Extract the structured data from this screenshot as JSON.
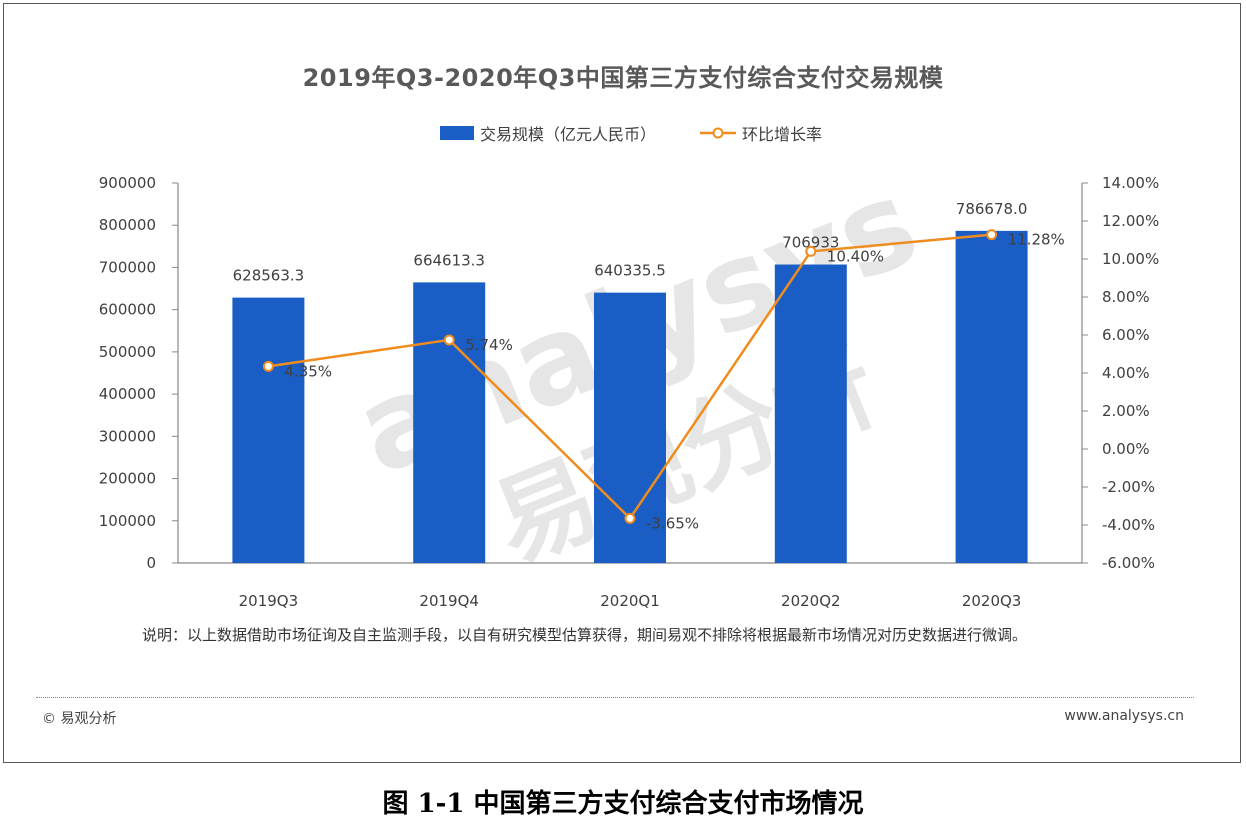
{
  "chart_data": {
    "type": "bar",
    "title": "2019年Q3-2020年Q3中国第三方支付综合支付交易规模",
    "categories": [
      "2019Q3",
      "2019Q4",
      "2020Q1",
      "2020Q2",
      "2020Q3"
    ],
    "series": [
      {
        "name": "交易规模（亿元人民币）",
        "type": "bar",
        "axis": "left",
        "color": "#1a5dc4",
        "values": [
          628563.3,
          664613.3,
          640335.5,
          706933,
          786678.0
        ],
        "labels": [
          "628563.3",
          "664613.3",
          "640335.5",
          "706933",
          "786678.0"
        ]
      },
      {
        "name": "环比增长率",
        "type": "line",
        "axis": "right",
        "color": "#f08c1e",
        "values": [
          4.35,
          5.74,
          -3.65,
          10.4,
          11.28
        ],
        "labels": [
          "4.35%",
          "5.74%",
          "-3.65%",
          "10.40%",
          "11.28%"
        ]
      }
    ],
    "y_left": {
      "ylim": [
        0,
        900000
      ],
      "ticks": [
        "900000",
        "800000",
        "700000",
        "600000",
        "500000",
        "400000",
        "300000",
        "200000",
        "100000",
        "0"
      ]
    },
    "y_right": {
      "ylim": [
        -6,
        14
      ],
      "ticks": [
        "14.00%",
        "12.00%",
        "10.00%",
        "8.00%",
        "6.00%",
        "4.00%",
        "2.00%",
        "0.00%",
        "-2.00%",
        "-4.00%",
        "-6.00%"
      ]
    },
    "legend": "top-center",
    "grid": false
  },
  "watermark": {
    "latin": "analysys",
    "cjk": "易观分析"
  },
  "note": "说明：以上数据借助市场征询及自主监测手段，以自有研究模型估算获得，期间易观不排除将根据最新市场情况对历史数据进行微调。",
  "footer": {
    "left": "© 易观分析",
    "right": "www.analysys.cn"
  },
  "caption": "图 1-1  中国第三方支付综合支付市场情况"
}
